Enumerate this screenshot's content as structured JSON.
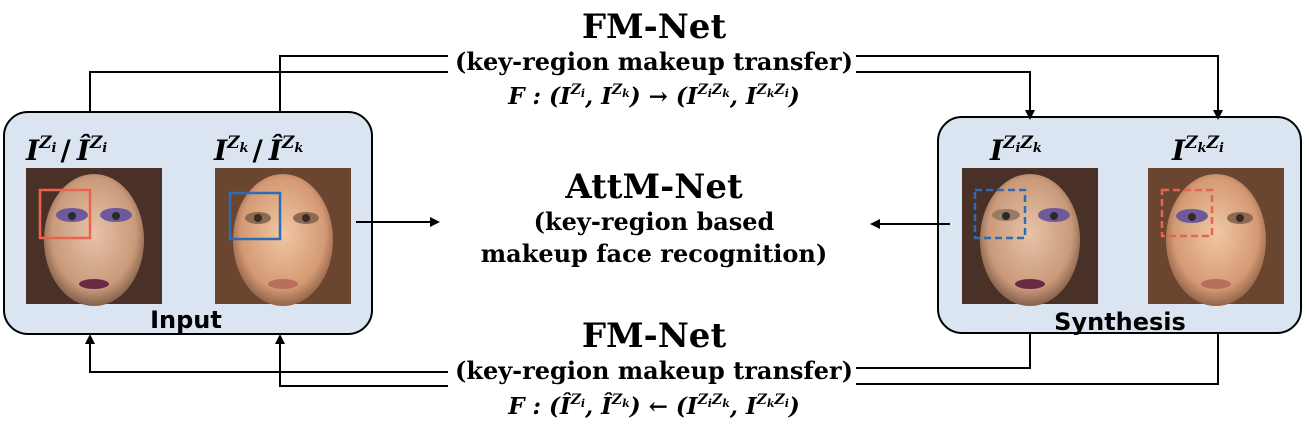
{
  "top": {
    "title": "FM-Net",
    "subtitle": "(key-region makeup transfer)",
    "formula": "F : (I^{Z_i}, I^{Z_k}) → (I^{Z_iZ_k}, I^{Z_kZ_i})"
  },
  "middle": {
    "title": "AttM-Net",
    "line1": "(key-region based",
    "line2": "makeup face recognition)"
  },
  "bottom": {
    "title": "FM-Net",
    "subtitle": "(key-region makeup transfer)",
    "formula": "F : (Î^{Z_i}, Î^{Z_k}) ← (I^{Z_iZ_k}, I^{Z_kZ_i})"
  },
  "input_panel": {
    "label": "Input",
    "face1_label": "I^{Z_i} / Î^{Z_i}",
    "face2_label": "I^{Z_k} / Î^{Z_k}"
  },
  "synthesis_panel": {
    "label": "Synthesis",
    "face1_label": "I^{Z_iZ_k}",
    "face2_label": "I^{Z_kZ_i}"
  },
  "colors": {
    "panel_fill": "#dbe5f1",
    "red_box": "#e8644f",
    "blue_box": "#2e6db4"
  }
}
